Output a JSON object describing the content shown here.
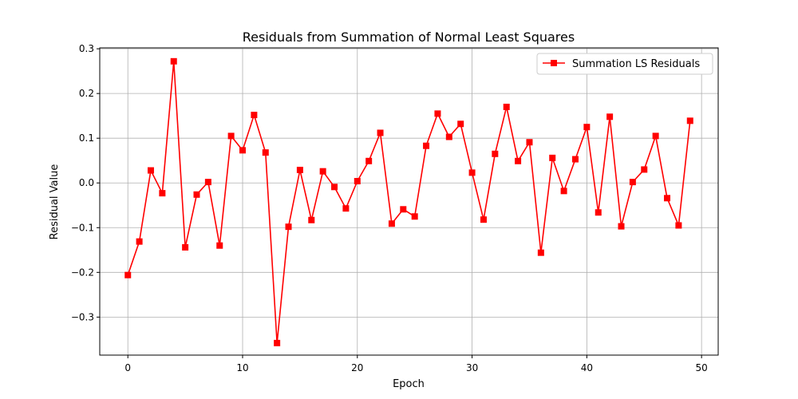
{
  "chart_data": {
    "type": "line",
    "title": "Residuals from Summation of Normal Least Squares",
    "xlabel": "Epoch",
    "ylabel": "Residual Value",
    "xlim": [
      -2.45,
      51.45
    ],
    "ylim": [
      -0.385,
      0.302
    ],
    "xticks": [
      0,
      10,
      20,
      30,
      40,
      50
    ],
    "yticks": [
      -0.3,
      -0.2,
      -0.1,
      0.0,
      0.1,
      0.2,
      0.3
    ],
    "xtick_labels": [
      "0",
      "10",
      "20",
      "30",
      "40",
      "50"
    ],
    "ytick_labels": [
      "−0.3",
      "−0.2",
      "−0.1",
      "0.0",
      "0.1",
      "0.2",
      "0.3"
    ],
    "grid": true,
    "legend_position": "top-right",
    "series": [
      {
        "name": "Summation LS Residuals",
        "color": "#ff0000",
        "marker": "square",
        "x": [
          0,
          1,
          2,
          3,
          4,
          5,
          6,
          7,
          8,
          9,
          10,
          11,
          12,
          13,
          14,
          15,
          16,
          17,
          18,
          19,
          20,
          21,
          22,
          23,
          24,
          25,
          26,
          27,
          28,
          29,
          30,
          31,
          32,
          33,
          34,
          35,
          36,
          37,
          38,
          39,
          40,
          41,
          42,
          43,
          44,
          45,
          46,
          47,
          48,
          49
        ],
        "y": [
          -0.206,
          -0.131,
          0.028,
          -0.023,
          0.272,
          -0.144,
          -0.026,
          0.002,
          -0.14,
          0.105,
          0.073,
          0.152,
          0.068,
          -0.358,
          -0.098,
          0.029,
          -0.083,
          0.026,
          -0.009,
          -0.057,
          0.004,
          0.049,
          0.112,
          -0.091,
          -0.059,
          -0.075,
          0.083,
          0.155,
          0.103,
          0.132,
          0.023,
          -0.082,
          0.065,
          0.17,
          0.049,
          0.091,
          -0.156,
          0.056,
          -0.018,
          0.053,
          0.125,
          -0.066,
          0.148,
          -0.097,
          0.002,
          0.03,
          0.105,
          -0.034,
          -0.095,
          0.139
        ]
      }
    ]
  }
}
